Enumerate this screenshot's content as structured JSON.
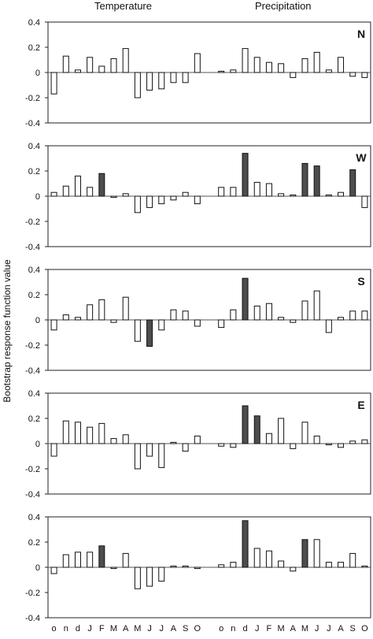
{
  "headers": {
    "left": "Temperature",
    "right": "Precipitation"
  },
  "ylabel": "Bootstrap response function value",
  "x_tick_labels": [
    "o",
    "n",
    "d",
    "J",
    "F",
    "M",
    "A",
    "M",
    "J",
    "J",
    "A",
    "S",
    "O",
    "",
    "o",
    "n",
    "d",
    "J",
    "F",
    "M",
    "A",
    "M",
    "J",
    "J",
    "A",
    "S",
    "O"
  ],
  "colors": {
    "significant": "#4d4d4d",
    "normal": "#ffffff",
    "frame": "#222222",
    "zero_line": "#555555"
  },
  "chart_data": [
    {
      "type": "bar",
      "panel_label": "N",
      "ylim": [
        -0.4,
        0.4
      ],
      "yticks": [
        "0.4",
        "0.2",
        "0",
        "-0.2",
        "-0.4"
      ],
      "series": [
        {
          "name": "Temperature",
          "values": [
            -0.17,
            0.13,
            0.02,
            0.12,
            0.05,
            0.11,
            0.19,
            -0.2,
            -0.14,
            -0.13,
            -0.08,
            -0.08,
            0.15
          ],
          "significant": [
            false,
            false,
            false,
            false,
            false,
            false,
            false,
            false,
            false,
            false,
            false,
            false,
            false
          ]
        },
        {
          "name": "Precipitation",
          "values": [
            0.01,
            0.02,
            0.19,
            0.12,
            0.08,
            0.07,
            -0.04,
            0.11,
            0.16,
            0.02,
            0.12,
            -0.03,
            -0.04
          ],
          "significant": [
            false,
            false,
            false,
            false,
            false,
            false,
            false,
            false,
            false,
            false,
            false,
            false,
            false
          ]
        }
      ]
    },
    {
      "type": "bar",
      "panel_label": "W",
      "ylim": [
        -0.4,
        0.4
      ],
      "yticks": [
        "0.4",
        "0.2",
        "0",
        "-0.2",
        "-0.4"
      ],
      "series": [
        {
          "name": "Temperature",
          "values": [
            0.03,
            0.08,
            0.16,
            0.07,
            0.18,
            -0.01,
            0.02,
            -0.13,
            -0.09,
            -0.06,
            -0.03,
            0.03,
            -0.06
          ],
          "significant": [
            false,
            false,
            false,
            false,
            true,
            false,
            false,
            false,
            false,
            false,
            false,
            false,
            false
          ]
        },
        {
          "name": "Precipitation",
          "values": [
            0.07,
            0.07,
            0.34,
            0.11,
            0.1,
            0.02,
            0.01,
            0.26,
            0.24,
            0.01,
            0.03,
            0.21,
            -0.09
          ],
          "significant": [
            false,
            false,
            true,
            false,
            false,
            false,
            false,
            true,
            true,
            false,
            false,
            true,
            false
          ]
        }
      ]
    },
    {
      "type": "bar",
      "panel_label": "S",
      "ylim": [
        -0.4,
        0.4
      ],
      "yticks": [
        "0.4",
        "0.2",
        "0",
        "-0.2",
        "-0.4"
      ],
      "series": [
        {
          "name": "Temperature",
          "values": [
            -0.08,
            0.04,
            0.02,
            0.12,
            0.16,
            -0.02,
            0.18,
            -0.17,
            -0.21,
            -0.08,
            0.08,
            0.07,
            -0.05
          ],
          "significant": [
            false,
            false,
            false,
            false,
            false,
            false,
            false,
            false,
            true,
            false,
            false,
            false,
            false
          ]
        },
        {
          "name": "Precipitation",
          "values": [
            -0.06,
            0.08,
            0.33,
            0.11,
            0.13,
            0.02,
            -0.02,
            0.15,
            0.23,
            -0.1,
            0.02,
            0.07,
            0.07
          ],
          "significant": [
            false,
            false,
            true,
            false,
            false,
            false,
            false,
            false,
            false,
            false,
            false,
            false,
            false
          ]
        }
      ]
    },
    {
      "type": "bar",
      "panel_label": "E",
      "ylim": [
        -0.4,
        0.4
      ],
      "yticks": [
        "0.4",
        "0.2",
        "0",
        "-0.2",
        "-0.4"
      ],
      "series": [
        {
          "name": "Temperature",
          "values": [
            -0.1,
            0.18,
            0.17,
            0.13,
            0.16,
            0.04,
            0.07,
            -0.2,
            -0.1,
            -0.19,
            0.01,
            -0.06,
            0.06
          ],
          "significant": [
            false,
            false,
            false,
            false,
            false,
            false,
            false,
            false,
            false,
            false,
            false,
            false,
            false
          ]
        },
        {
          "name": "Precipitation",
          "values": [
            -0.02,
            -0.03,
            0.3,
            0.22,
            0.08,
            0.2,
            -0.04,
            0.17,
            0.06,
            -0.01,
            -0.03,
            0.02,
            0.03
          ],
          "significant": [
            false,
            false,
            true,
            true,
            false,
            false,
            false,
            false,
            false,
            false,
            false,
            false,
            false
          ]
        }
      ]
    },
    {
      "type": "bar",
      "panel_label": "",
      "ylim": [
        -0.4,
        0.4
      ],
      "yticks": [
        "0.4",
        "0.2",
        "0",
        "-0.2",
        "-0.4"
      ],
      "series": [
        {
          "name": "Temperature",
          "values": [
            -0.05,
            0.1,
            0.12,
            0.12,
            0.17,
            -0.01,
            0.11,
            -0.17,
            -0.15,
            -0.11,
            0.01,
            0.01,
            -0.01
          ],
          "significant": [
            false,
            false,
            false,
            false,
            true,
            false,
            false,
            false,
            false,
            false,
            false,
            false,
            false
          ]
        },
        {
          "name": "Precipitation",
          "values": [
            0.02,
            0.04,
            0.37,
            0.15,
            0.13,
            0.05,
            -0.03,
            0.22,
            0.22,
            0.04,
            0.04,
            0.11,
            0.01
          ],
          "significant": [
            false,
            false,
            true,
            false,
            false,
            false,
            false,
            true,
            false,
            false,
            false,
            false,
            false
          ]
        }
      ]
    }
  ]
}
